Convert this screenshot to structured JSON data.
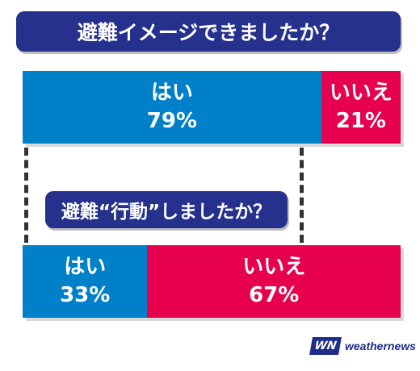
{
  "colors": {
    "yes": "#0080c8",
    "no": "#e6004e",
    "title_bg": "#25318c"
  },
  "chart_data": [
    {
      "type": "bar",
      "title": "避難イメージできましたか？",
      "categories": [
        "はい",
        "いいえ"
      ],
      "values": [
        79,
        21
      ],
      "value_labels": [
        "79%",
        "21%"
      ]
    },
    {
      "type": "bar",
      "title": "避難“行動”しましたか？",
      "categories": [
        "はい",
        "いいえ"
      ],
      "values": [
        33,
        67
      ],
      "value_labels": [
        "33%",
        "67%"
      ]
    }
  ],
  "logo": {
    "mark": "WN",
    "text": "weathernews"
  }
}
